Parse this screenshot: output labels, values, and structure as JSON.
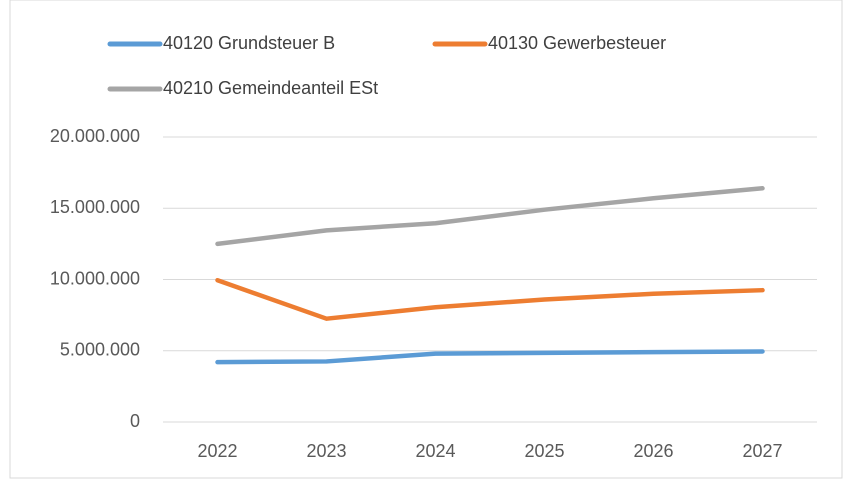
{
  "chart_data": {
    "type": "line",
    "categories": [
      "2022",
      "2023",
      "2024",
      "2025",
      "2026",
      "2027"
    ],
    "series": [
      {
        "name": "40120 Grundsteuer B",
        "color": "#5b9bd5",
        "values": [
          4200000,
          4250000,
          4800000,
          4850000,
          4900000,
          4950000
        ]
      },
      {
        "name": "40130 Gewerbesteuer",
        "color": "#ed7d31",
        "values": [
          9950000,
          7250000,
          8050000,
          8600000,
          9000000,
          9250000
        ]
      },
      {
        "name": "40210 Gemeindeanteil ESt",
        "color": "#a5a5a5",
        "values": [
          12500000,
          13450000,
          13950000,
          14900000,
          15700000,
          16400000
        ]
      }
    ],
    "ylim": [
      0,
      20000000
    ],
    "yticks": [
      0,
      {
        "value": 5000000,
        "label": "5.000.000"
      },
      {
        "value": 10000000,
        "label": "10.000.000"
      },
      {
        "value": 15000000,
        "label": "15.000.000"
      },
      {
        "value": 20000000,
        "label": "20.000.000"
      }
    ],
    "grid": true,
    "legend": "top"
  }
}
